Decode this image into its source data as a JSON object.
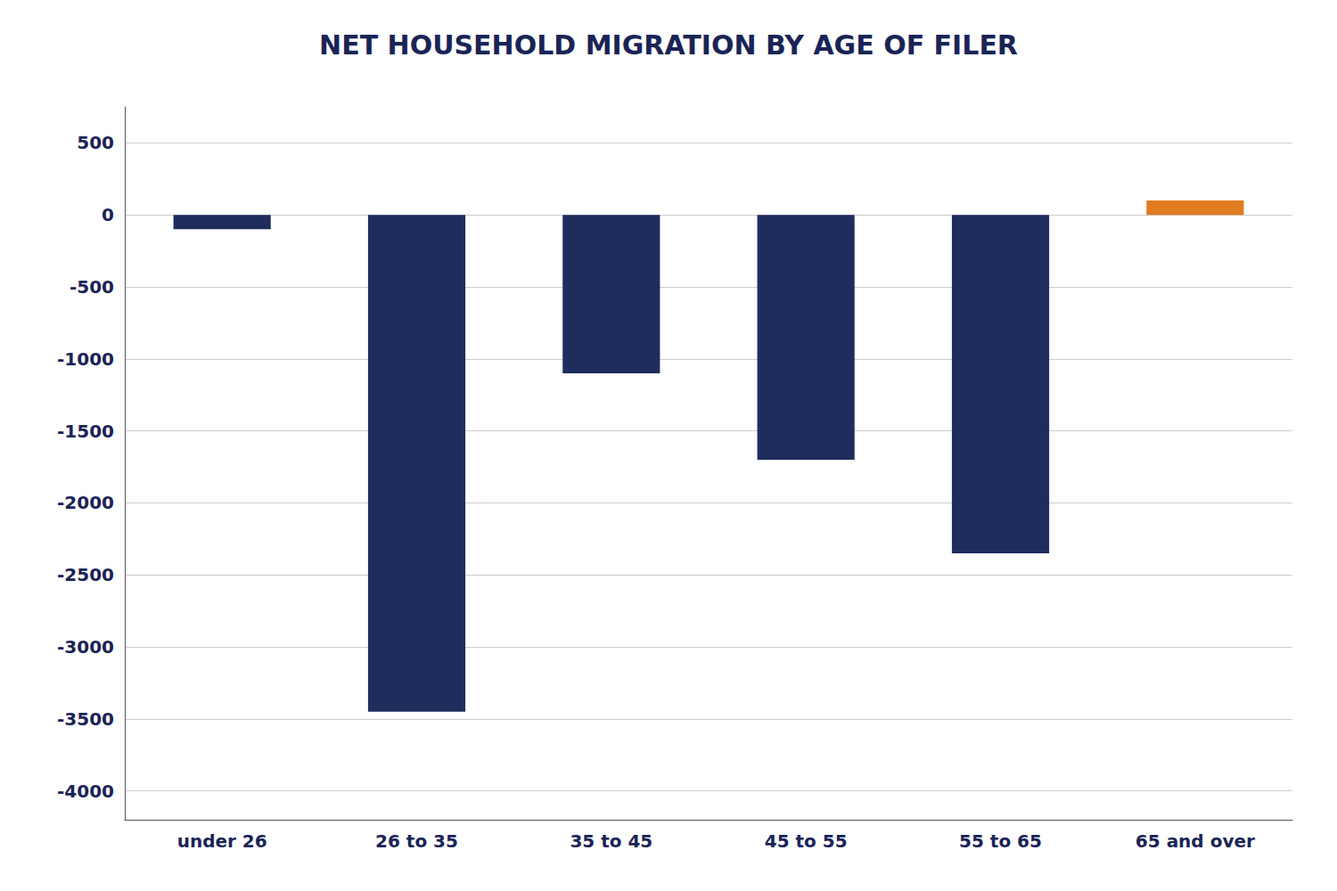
{
  "chart_data": {
    "type": "bar",
    "title": "NET HOUSEHOLD MIGRATION BY AGE OF FILER",
    "categories": [
      "under 26",
      "26 to 35",
      "35 to 45",
      "45 to 55",
      "55 to 65",
      "65 and over"
    ],
    "values": [
      -100,
      -3450,
      -1100,
      -1700,
      -2350,
      100
    ],
    "colors": [
      "#1f2d5c",
      "#1f2d5c",
      "#1f2d5c",
      "#1f2d5c",
      "#1f2d5c",
      "#e07b20"
    ],
    "ylim": [
      -4200,
      750
    ],
    "yticks": [
      500,
      0,
      -500,
      -1000,
      -1500,
      -2000,
      -2500,
      -3000,
      -3500,
      -4000
    ],
    "grid": true
  }
}
